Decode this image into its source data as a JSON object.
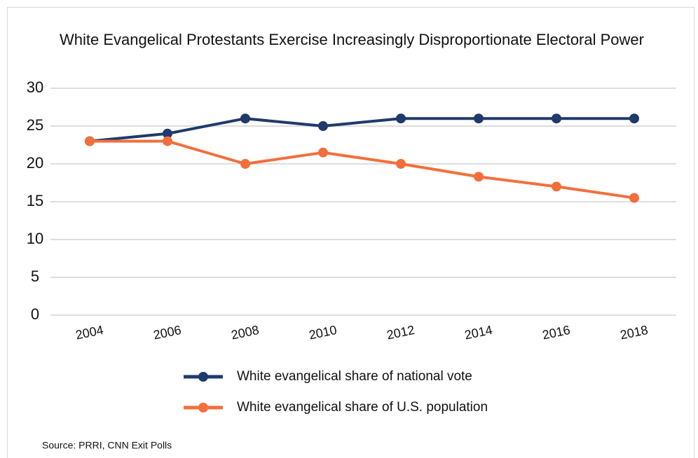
{
  "chart_data": {
    "type": "line",
    "title": "White Evangelical Protestants Exercise Increasingly Disproportionate Electoral Power",
    "categories": [
      "2004",
      "2006",
      "2008",
      "2010",
      "2012",
      "2014",
      "2016",
      "2018"
    ],
    "series": [
      {
        "name": "White evangelical share of national vote",
        "color": "#1f3a6b",
        "values": [
          23,
          24,
          26,
          25,
          26,
          26,
          26,
          26
        ]
      },
      {
        "name": "White evangelical share of U.S. population",
        "color": "#f26f3c",
        "values": [
          23,
          23,
          20,
          21.5,
          20,
          18.3,
          17,
          15.5
        ]
      }
    ],
    "ylim": [
      0,
      30
    ],
    "yticks": [
      0,
      5,
      10,
      15,
      20,
      25,
      30
    ],
    "grid": true,
    "legend": "bottom",
    "source": "Source: PRRI, CNN Exit Polls"
  }
}
